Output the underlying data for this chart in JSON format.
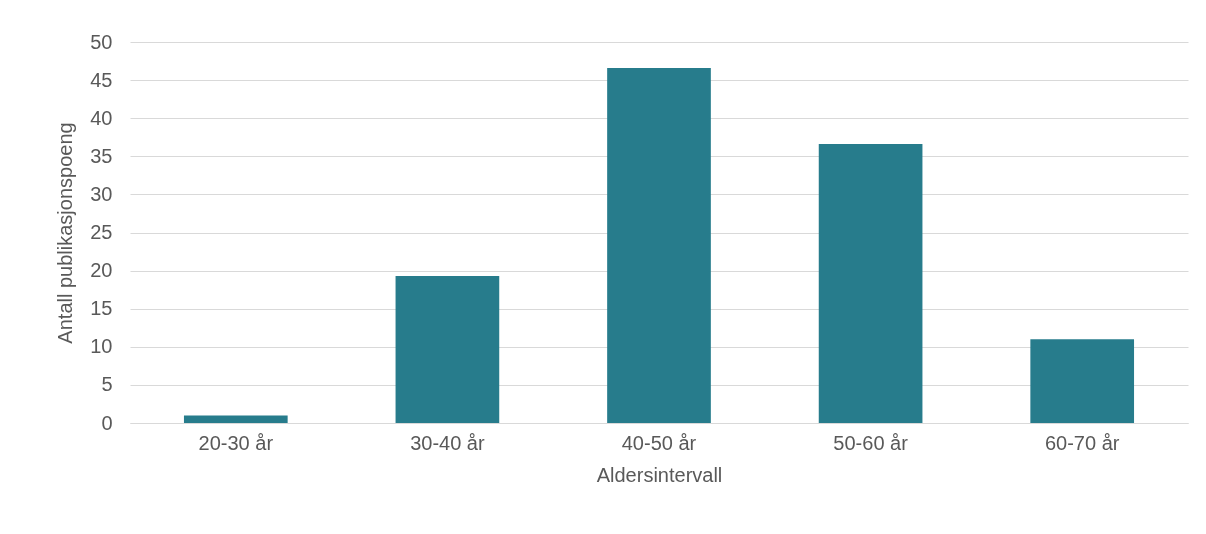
{
  "chart_data": {
    "type": "bar",
    "xlabel": "Aldersintervall",
    "ylabel": "Antall publikasjonspoeng",
    "categories": [
      "20-30 år",
      "30-40 år",
      "40-50 år",
      "50-60 år",
      "60-70 år"
    ],
    "values": [
      1.0,
      19.3,
      46.6,
      36.6,
      11.0
    ],
    "color": "#277c8c",
    "ylim": [
      0,
      50
    ],
    "yticks": [
      0,
      5,
      10,
      15,
      20,
      25,
      30,
      35,
      40,
      45,
      50
    ],
    "grid": "y"
  }
}
